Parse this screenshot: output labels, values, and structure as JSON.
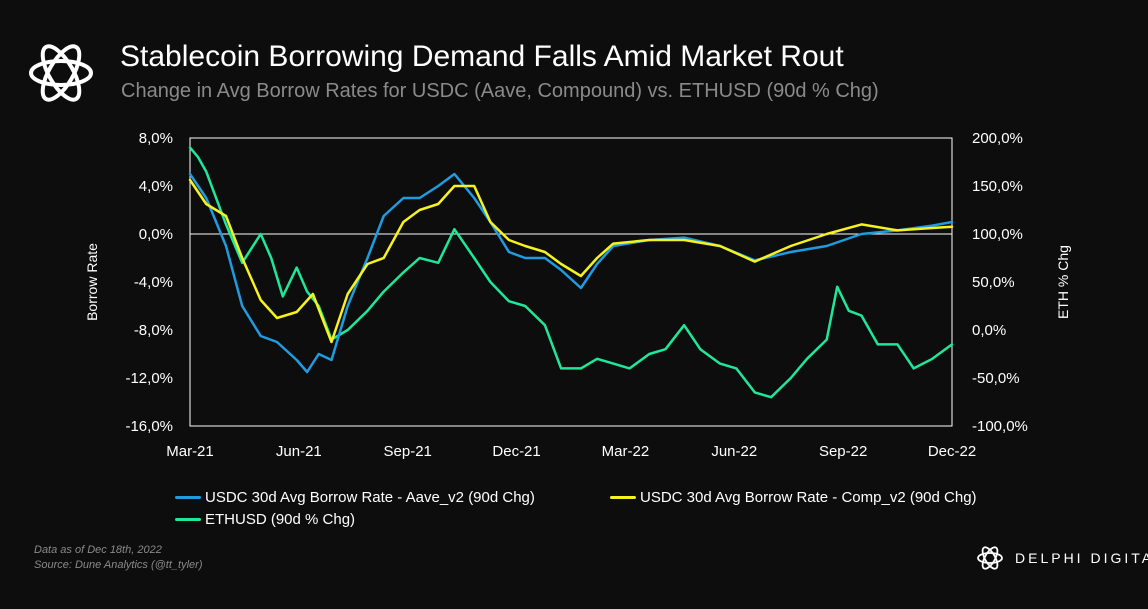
{
  "header": {
    "title": "Stablecoin Borrowing Demand Falls Amid Market Rout",
    "subtitle": "Change in Avg Borrow Rates for USDC (Aave, Compound) vs. ETHUSD (90d % Chg)"
  },
  "footer": {
    "note_line1": "Data as of Dec 18th, 2022",
    "note_line2": "Source: Dune Analytics (@tt_tyler)"
  },
  "brand": {
    "name": "DELPHI DIGITAL",
    "icon": "delphi-knot-icon"
  },
  "colors": {
    "background": "#0d0d0d",
    "aave": "#1f9be0",
    "comp": "#f5f21f",
    "eth": "#1ee79a",
    "axis": "#ffffff"
  },
  "chart_data": {
    "type": "line",
    "title": "Stablecoin Borrowing Demand Falls Amid Market Rout",
    "subtitle": "Change in Avg Borrow Rates for USDC (Aave, Compound) vs. ETHUSD (90d % Chg)",
    "ylabel": "Borrow Rate",
    "y2label": "ETH % Chg",
    "ylim": [
      -16,
      8
    ],
    "y2lim": [
      -100,
      200
    ],
    "yticks": [
      "8,0%",
      "4,0%",
      "0,0%",
      "-4,0%",
      "-8,0%",
      "-12,0%",
      "-16,0%"
    ],
    "y2ticks": [
      "200,0%",
      "150,0%",
      "100,0%",
      "50,0%",
      "0,0%",
      "-50,0%",
      "-100,0%"
    ],
    "xticks": [
      "Mar-21",
      "Jun-21",
      "Sep-21",
      "Dec-21",
      "Mar-22",
      "Jun-22",
      "Sep-22",
      "Dec-22"
    ],
    "xlim": [
      "2021-03-01",
      "2022-12-18"
    ],
    "legend_position": "bottom",
    "series": [
      {
        "name": "USDC 30d Avg Borrow Rate - Aave_v2 (90d Chg)",
        "axis": "left",
        "color": "#1f9be0",
        "x": [
          "2021-03-01",
          "2021-03-15",
          "2021-04-01",
          "2021-04-15",
          "2021-05-01",
          "2021-05-15",
          "2021-06-01",
          "2021-06-10",
          "2021-06-20",
          "2021-07-01",
          "2021-07-15",
          "2021-08-01",
          "2021-08-15",
          "2021-09-01",
          "2021-09-15",
          "2021-10-01",
          "2021-10-15",
          "2021-11-01",
          "2021-11-15",
          "2021-12-01",
          "2021-12-15",
          "2022-01-01",
          "2022-01-15",
          "2022-02-01",
          "2022-02-15",
          "2022-03-01",
          "2022-04-01",
          "2022-05-01",
          "2022-06-01",
          "2022-07-01",
          "2022-08-01",
          "2022-09-01",
          "2022-10-01",
          "2022-11-01",
          "2022-12-01",
          "2022-12-18"
        ],
        "values": [
          5.0,
          3.0,
          -1.0,
          -6.0,
          -8.5,
          -9.0,
          -10.5,
          -11.5,
          -10.0,
          -10.5,
          -6.0,
          -2.0,
          1.5,
          3.0,
          3.0,
          4.0,
          5.0,
          3.0,
          1.0,
          -1.5,
          -2.0,
          -2.0,
          -3.0,
          -4.5,
          -2.5,
          -1.0,
          -0.5,
          -0.3,
          -1.0,
          -2.2,
          -1.5,
          -1.0,
          0.0,
          0.3,
          0.7,
          1.0
        ]
      },
      {
        "name": "USDC 30d Avg Borrow Rate - Comp_v2 (90d Chg)",
        "axis": "left",
        "color": "#f5f21f",
        "x": [
          "2021-03-01",
          "2021-03-15",
          "2021-04-01",
          "2021-04-15",
          "2021-05-01",
          "2021-05-15",
          "2021-06-01",
          "2021-06-15",
          "2021-07-01",
          "2021-07-15",
          "2021-08-01",
          "2021-08-15",
          "2021-09-01",
          "2021-09-15",
          "2021-10-01",
          "2021-10-15",
          "2021-11-01",
          "2021-11-15",
          "2021-12-01",
          "2021-12-15",
          "2022-01-01",
          "2022-01-15",
          "2022-02-01",
          "2022-02-15",
          "2022-03-01",
          "2022-04-01",
          "2022-05-01",
          "2022-06-01",
          "2022-07-01",
          "2022-08-01",
          "2022-09-01",
          "2022-10-01",
          "2022-11-01",
          "2022-12-01",
          "2022-12-18"
        ],
        "values": [
          4.5,
          2.5,
          1.5,
          -2.0,
          -5.5,
          -7.0,
          -6.5,
          -5.0,
          -9.0,
          -5.0,
          -2.5,
          -2.0,
          1.0,
          2.0,
          2.5,
          4.0,
          4.0,
          1.0,
          -0.5,
          -1.0,
          -1.5,
          -2.5,
          -3.5,
          -2.0,
          -0.8,
          -0.5,
          -0.5,
          -1.0,
          -2.3,
          -1.0,
          0.0,
          0.8,
          0.3,
          0.5,
          0.6
        ]
      },
      {
        "name": "ETHUSD (90d % Chg)",
        "axis": "right",
        "color": "#1ee79a",
        "x": [
          "2021-03-01",
          "2021-03-08",
          "2021-03-15",
          "2021-04-01",
          "2021-04-15",
          "2021-05-01",
          "2021-05-10",
          "2021-05-20",
          "2021-06-01",
          "2021-06-10",
          "2021-06-20",
          "2021-07-01",
          "2021-07-15",
          "2021-08-01",
          "2021-08-15",
          "2021-09-01",
          "2021-09-15",
          "2021-10-01",
          "2021-10-15",
          "2021-11-01",
          "2021-11-15",
          "2021-12-01",
          "2021-12-15",
          "2022-01-01",
          "2022-01-15",
          "2022-02-01",
          "2022-02-15",
          "2022-03-01",
          "2022-03-15",
          "2022-04-01",
          "2022-04-15",
          "2022-05-01",
          "2022-05-15",
          "2022-06-01",
          "2022-06-15",
          "2022-07-01",
          "2022-07-15",
          "2022-08-01",
          "2022-08-15",
          "2022-09-01",
          "2022-09-10",
          "2022-09-20",
          "2022-10-01",
          "2022-10-15",
          "2022-11-01",
          "2022-11-15",
          "2022-12-01",
          "2022-12-18"
        ],
        "values": [
          190,
          180,
          165,
          110,
          70,
          100,
          75,
          35,
          65,
          40,
          25,
          -10,
          0,
          20,
          40,
          60,
          75,
          70,
          105,
          75,
          50,
          30,
          25,
          5,
          -40,
          -40,
          -30,
          -35,
          -40,
          -25,
          -20,
          5,
          -20,
          -35,
          -40,
          -65,
          -70,
          -50,
          -30,
          -10,
          45,
          20,
          15,
          -15,
          -15,
          -40,
          -30,
          -15
        ]
      }
    ]
  }
}
